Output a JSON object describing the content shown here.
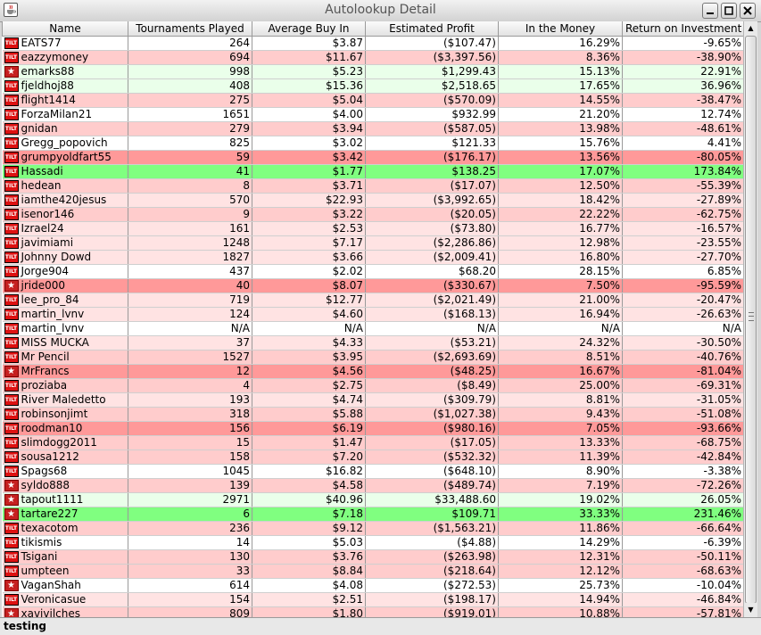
{
  "window": {
    "title": "Autolookup Detail",
    "app_icon": "java-cup-icon",
    "controls": [
      "minimize-icon",
      "maximize-icon",
      "close-icon"
    ]
  },
  "table": {
    "columns": [
      "Name",
      "Tournaments Played",
      "Average Buy In",
      "Estimated Profit",
      "In the Money",
      "Return on Investment"
    ],
    "row_colors": {
      "white": "#ffffff",
      "light-green": "#eaffea",
      "green": "#99ff99",
      "bright-green": "#80ff80",
      "pale-red": "#ffe3e3",
      "light-red": "#ffcccc",
      "red": "#ff9999"
    },
    "rows": [
      {
        "icon": "tilt",
        "color": "white",
        "cells": [
          "EATS77",
          "264",
          "$3.87",
          "($107.47)",
          "16.29%",
          "-9.65%"
        ]
      },
      {
        "icon": "tilt",
        "color": "light-red",
        "cells": [
          "eazzymoney",
          "694",
          "$11.67",
          "($3,397.56)",
          "8.36%",
          "-38.90%"
        ]
      },
      {
        "icon": "star",
        "color": "light-green",
        "cells": [
          "emarks88",
          "998",
          "$5.23",
          "$1,299.43",
          "15.13%",
          "22.91%"
        ]
      },
      {
        "icon": "tilt",
        "color": "light-green",
        "cells": [
          "fjeldhoj88",
          "408",
          "$15.36",
          "$2,518.65",
          "17.65%",
          "36.96%"
        ]
      },
      {
        "icon": "tilt",
        "color": "light-red",
        "cells": [
          "flight1414",
          "275",
          "$5.04",
          "($570.09)",
          "14.55%",
          "-38.47%"
        ]
      },
      {
        "icon": "tilt",
        "color": "white",
        "cells": [
          "ForzaMilan21",
          "1651",
          "$4.00",
          "$932.99",
          "21.20%",
          "12.74%"
        ]
      },
      {
        "icon": "tilt",
        "color": "light-red",
        "cells": [
          "gnidan",
          "279",
          "$3.94",
          "($587.05)",
          "13.98%",
          "-48.61%"
        ]
      },
      {
        "icon": "tilt",
        "color": "white",
        "cells": [
          "Gregg_popovich",
          "825",
          "$3.02",
          "$121.33",
          "15.76%",
          "4.41%"
        ]
      },
      {
        "icon": "tilt",
        "color": "red",
        "cells": [
          "grumpyoldfart55",
          "59",
          "$3.42",
          "($176.17)",
          "13.56%",
          "-80.05%"
        ]
      },
      {
        "icon": "tilt",
        "color": "bright-green",
        "cells": [
          "Hassadi",
          "41",
          "$1.77",
          "$138.25",
          "17.07%",
          "173.84%"
        ]
      },
      {
        "icon": "tilt",
        "color": "light-red",
        "cells": [
          "hedean",
          "8",
          "$3.71",
          "($17.07)",
          "12.50%",
          "-55.39%"
        ]
      },
      {
        "icon": "tilt",
        "color": "pale-red",
        "cells": [
          "iamthe420jesus",
          "570",
          "$22.93",
          "($3,992.65)",
          "18.42%",
          "-27.89%"
        ]
      },
      {
        "icon": "tilt",
        "color": "light-red",
        "cells": [
          "isenor146",
          "9",
          "$3.22",
          "($20.05)",
          "22.22%",
          "-62.75%"
        ]
      },
      {
        "icon": "tilt",
        "color": "pale-red",
        "cells": [
          "Izrael24",
          "161",
          "$2.53",
          "($73.80)",
          "16.77%",
          "-16.57%"
        ]
      },
      {
        "icon": "tilt",
        "color": "pale-red",
        "cells": [
          "javimiami",
          "1248",
          "$7.17",
          "($2,286.86)",
          "12.98%",
          "-23.55%"
        ]
      },
      {
        "icon": "tilt",
        "color": "pale-red",
        "cells": [
          "Johnny Dowd",
          "1827",
          "$3.66",
          "($2,009.41)",
          "16.80%",
          "-27.70%"
        ]
      },
      {
        "icon": "tilt",
        "color": "white",
        "cells": [
          "Jorge904",
          "437",
          "$2.02",
          "$68.20",
          "28.15%",
          "6.85%"
        ]
      },
      {
        "icon": "star",
        "color": "red",
        "cells": [
          "jride000",
          "40",
          "$8.07",
          "($330.67)",
          "7.50%",
          "-95.59%"
        ]
      },
      {
        "icon": "tilt",
        "color": "pale-red",
        "cells": [
          "lee_pro_84",
          "719",
          "$12.77",
          "($2,021.49)",
          "21.00%",
          "-20.47%"
        ]
      },
      {
        "icon": "tilt",
        "color": "pale-red",
        "cells": [
          "martin_lvnv",
          "124",
          "$4.60",
          "($168.13)",
          "16.94%",
          "-26.63%"
        ]
      },
      {
        "icon": "tilt",
        "color": "white",
        "cells": [
          "martin_lvnv",
          "N/A",
          "N/A",
          "N/A",
          "N/A",
          "N/A"
        ]
      },
      {
        "icon": "tilt",
        "color": "pale-red",
        "cells": [
          "MISS MUCKA",
          "37",
          "$4.33",
          "($53.21)",
          "24.32%",
          "-30.50%"
        ]
      },
      {
        "icon": "tilt",
        "color": "light-red",
        "cells": [
          "Mr Pencil",
          "1527",
          "$3.95",
          "($2,693.69)",
          "8.51%",
          "-40.76%"
        ]
      },
      {
        "icon": "star",
        "color": "red",
        "cells": [
          "MrFrancs",
          "12",
          "$4.56",
          "($48.25)",
          "16.67%",
          "-81.04%"
        ]
      },
      {
        "icon": "tilt",
        "color": "light-red",
        "cells": [
          "proziaba",
          "4",
          "$2.75",
          "($8.49)",
          "25.00%",
          "-69.31%"
        ]
      },
      {
        "icon": "tilt",
        "color": "pale-red",
        "cells": [
          "River Maledetto",
          "193",
          "$4.74",
          "($309.79)",
          "8.81%",
          "-31.05%"
        ]
      },
      {
        "icon": "tilt",
        "color": "light-red",
        "cells": [
          "robinsonjimt",
          "318",
          "$5.88",
          "($1,027.38)",
          "9.43%",
          "-51.08%"
        ]
      },
      {
        "icon": "tilt",
        "color": "red",
        "cells": [
          "roodman10",
          "156",
          "$6.19",
          "($980.16)",
          "7.05%",
          "-93.66%"
        ]
      },
      {
        "icon": "tilt",
        "color": "light-red",
        "cells": [
          "slimdogg2011",
          "15",
          "$1.47",
          "($17.05)",
          "13.33%",
          "-68.75%"
        ]
      },
      {
        "icon": "tilt",
        "color": "light-red",
        "cells": [
          "sousa1212",
          "158",
          "$7.20",
          "($532.32)",
          "11.39%",
          "-42.84%"
        ]
      },
      {
        "icon": "tilt",
        "color": "white",
        "cells": [
          "Spags68",
          "1045",
          "$16.82",
          "($648.10)",
          "8.90%",
          "-3.38%"
        ]
      },
      {
        "icon": "star",
        "color": "light-red",
        "cells": [
          "syldo888",
          "139",
          "$4.58",
          "($489.74)",
          "7.19%",
          "-72.26%"
        ]
      },
      {
        "icon": "star",
        "color": "light-green",
        "cells": [
          "tapout1111",
          "2971",
          "$40.96",
          "$33,488.60",
          "19.02%",
          "26.05%"
        ]
      },
      {
        "icon": "star",
        "color": "bright-green",
        "cells": [
          "tartare227",
          "6",
          "$7.18",
          "$109.71",
          "33.33%",
          "231.46%"
        ]
      },
      {
        "icon": "tilt",
        "color": "light-red",
        "cells": [
          "texacotom",
          "236",
          "$9.12",
          "($1,563.21)",
          "11.86%",
          "-66.64%"
        ]
      },
      {
        "icon": "tilt",
        "color": "white",
        "cells": [
          "tikismis",
          "14",
          "$5.03",
          "($4.88)",
          "14.29%",
          "-6.39%"
        ]
      },
      {
        "icon": "tilt",
        "color": "light-red",
        "cells": [
          "Tsigani",
          "130",
          "$3.76",
          "($263.98)",
          "12.31%",
          "-50.11%"
        ]
      },
      {
        "icon": "tilt",
        "color": "light-red",
        "cells": [
          "umpteen",
          "33",
          "$8.84",
          "($218.64)",
          "12.12%",
          "-68.63%"
        ]
      },
      {
        "icon": "star",
        "color": "white",
        "cells": [
          "VaganShah",
          "614",
          "$4.08",
          "($272.53)",
          "25.73%",
          "-10.04%"
        ]
      },
      {
        "icon": "tilt",
        "color": "pale-red",
        "cells": [
          "Veronicasue",
          "154",
          "$2.51",
          "($198.17)",
          "14.94%",
          "-46.84%"
        ]
      },
      {
        "icon": "star",
        "color": "light-red",
        "cells": [
          "xavivilches",
          "809",
          "$1.80",
          "($919.01)",
          "10.88%",
          "-57.81%"
        ]
      }
    ]
  },
  "scrollbar": {
    "up": "scroll-up-arrow-icon",
    "down": "scroll-down-arrow-icon"
  },
  "status": {
    "text": "testing"
  }
}
